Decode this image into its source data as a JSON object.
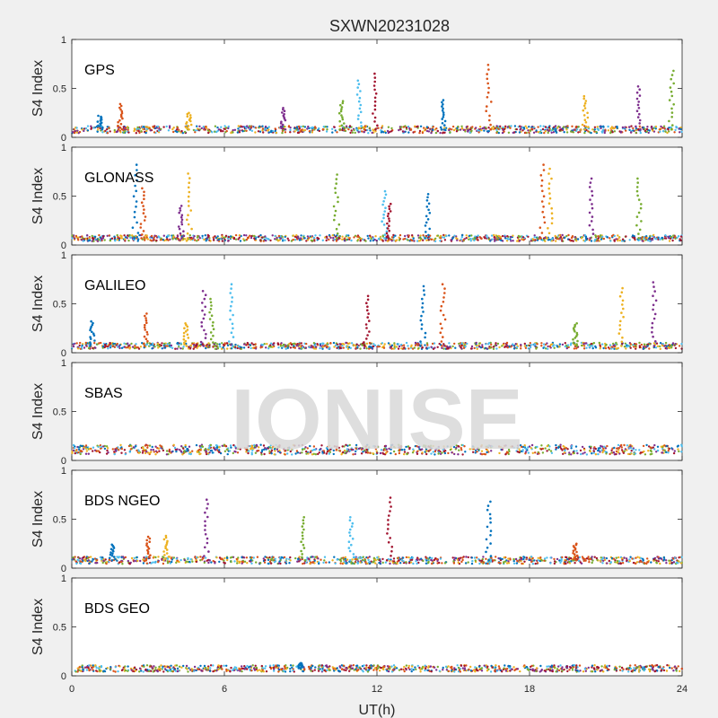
{
  "watermark": "IONISE",
  "chart_data": {
    "type": "scatter",
    "title": "SXWN20231028",
    "xlabel": "UT(h)",
    "ylabel": "S4 Index",
    "xlim": [
      0,
      24
    ],
    "ylim": [
      0,
      1
    ],
    "xticks": [
      "0",
      "6",
      "12",
      "18",
      "24"
    ],
    "yticks": [
      "0",
      "0.5",
      "1"
    ],
    "colors": [
      "#0072BD",
      "#D95319",
      "#EDB120",
      "#7E2F8E",
      "#77AC30",
      "#4DBEEE",
      "#A2142F"
    ],
    "panels": [
      {
        "label": "GPS",
        "baseline": 0.08,
        "spikes": [
          {
            "x": 1.1,
            "y": 0.22
          },
          {
            "x": 1.9,
            "y": 0.34
          },
          {
            "x": 4.6,
            "y": 0.25
          },
          {
            "x": 8.3,
            "y": 0.3
          },
          {
            "x": 10.6,
            "y": 0.37
          },
          {
            "x": 11.3,
            "y": 0.58
          },
          {
            "x": 11.9,
            "y": 0.65
          },
          {
            "x": 14.6,
            "y": 0.38
          },
          {
            "x": 16.4,
            "y": 0.74
          },
          {
            "x": 20.2,
            "y": 0.42
          },
          {
            "x": 22.3,
            "y": 0.52
          },
          {
            "x": 23.6,
            "y": 0.68
          }
        ]
      },
      {
        "label": "GLONASS",
        "baseline": 0.07,
        "spikes": [
          {
            "x": 2.5,
            "y": 0.82
          },
          {
            "x": 2.8,
            "y": 0.58
          },
          {
            "x": 4.6,
            "y": 0.73
          },
          {
            "x": 4.3,
            "y": 0.4
          },
          {
            "x": 10.4,
            "y": 0.72
          },
          {
            "x": 12.3,
            "y": 0.55
          },
          {
            "x": 12.5,
            "y": 0.42
          },
          {
            "x": 14.0,
            "y": 0.52
          },
          {
            "x": 18.5,
            "y": 0.82
          },
          {
            "x": 18.8,
            "y": 0.78
          },
          {
            "x": 20.4,
            "y": 0.68
          },
          {
            "x": 22.3,
            "y": 0.68
          }
        ]
      },
      {
        "label": "GALILEO",
        "baseline": 0.07,
        "spikes": [
          {
            "x": 0.8,
            "y": 0.32
          },
          {
            "x": 2.9,
            "y": 0.4
          },
          {
            "x": 4.5,
            "y": 0.3
          },
          {
            "x": 5.2,
            "y": 0.63
          },
          {
            "x": 5.5,
            "y": 0.55
          },
          {
            "x": 6.3,
            "y": 0.7
          },
          {
            "x": 11.6,
            "y": 0.58
          },
          {
            "x": 13.8,
            "y": 0.68
          },
          {
            "x": 14.6,
            "y": 0.7
          },
          {
            "x": 21.6,
            "y": 0.66
          },
          {
            "x": 22.9,
            "y": 0.72
          },
          {
            "x": 19.8,
            "y": 0.3
          }
        ]
      },
      {
        "label": "SBAS",
        "baseline": 0.11,
        "spikes": []
      },
      {
        "label": "BDS NGEO",
        "baseline": 0.08,
        "spikes": [
          {
            "x": 1.6,
            "y": 0.24
          },
          {
            "x": 3.0,
            "y": 0.32
          },
          {
            "x": 3.7,
            "y": 0.33
          },
          {
            "x": 5.3,
            "y": 0.7
          },
          {
            "x": 9.1,
            "y": 0.52
          },
          {
            "x": 11.0,
            "y": 0.52
          },
          {
            "x": 12.5,
            "y": 0.72
          },
          {
            "x": 16.4,
            "y": 0.68
          },
          {
            "x": 19.8,
            "y": 0.25
          }
        ]
      },
      {
        "label": "BDS GEO",
        "baseline": 0.075,
        "spikes": [
          {
            "x": 9.0,
            "y": 0.13
          }
        ]
      }
    ]
  }
}
